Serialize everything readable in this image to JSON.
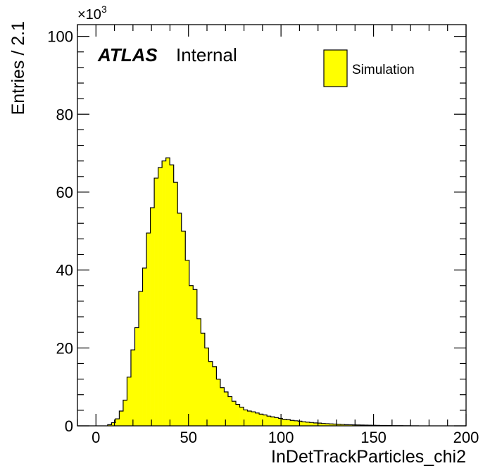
{
  "chart_data": {
    "type": "bar",
    "title": "",
    "xlabel": "InDetTrackParticles_chi2",
    "ylabel": "Entries / 2.1",
    "y_multiplier": "×10",
    "y_multiplier_exponent": "3",
    "xlim": [
      -10,
      200
    ],
    "ylim": [
      0,
      103
    ],
    "x_ticks": [
      0,
      50,
      100,
      150,
      200
    ],
    "y_ticks": [
      0,
      20,
      40,
      60,
      80,
      100
    ],
    "grid": false,
    "legend_position": "top-right",
    "experiment_label": "ATLAS",
    "status_label": "Internal",
    "series": [
      {
        "name": "Simulation",
        "color": "#ffff00",
        "bin_width": 2.1,
        "bin_start": 6.3,
        "values": [
          0.3,
          0.8,
          1.8,
          3.8,
          6.6,
          12.5,
          19.5,
          25.2,
          34.5,
          40.5,
          49.5,
          56.0,
          63.6,
          66.3,
          68.0,
          68.8,
          67.0,
          62.5,
          54.6,
          50.0,
          42.5,
          36.0,
          35.0,
          27.5,
          23.8,
          20.0,
          16.5,
          15.2,
          12.0,
          9.8,
          8.7,
          7.5,
          6.3,
          5.5,
          4.8,
          4.1,
          3.8,
          3.6,
          3.3,
          3.0,
          2.8,
          2.5,
          2.3,
          2.1,
          1.9,
          1.7,
          1.6,
          1.4,
          1.3,
          1.2,
          1.05,
          0.95,
          0.85,
          0.75,
          0.7,
          0.6,
          0.55,
          0.5,
          0.45,
          0.4,
          0.35,
          0.3,
          0.28,
          0.25,
          0.22,
          0.2,
          0.18,
          0.16,
          0.14,
          0.12,
          0.1,
          0.09,
          0.08,
          0.06,
          0.05,
          0.04,
          0.03,
          0.02,
          0.015,
          0.01
        ]
      }
    ]
  }
}
